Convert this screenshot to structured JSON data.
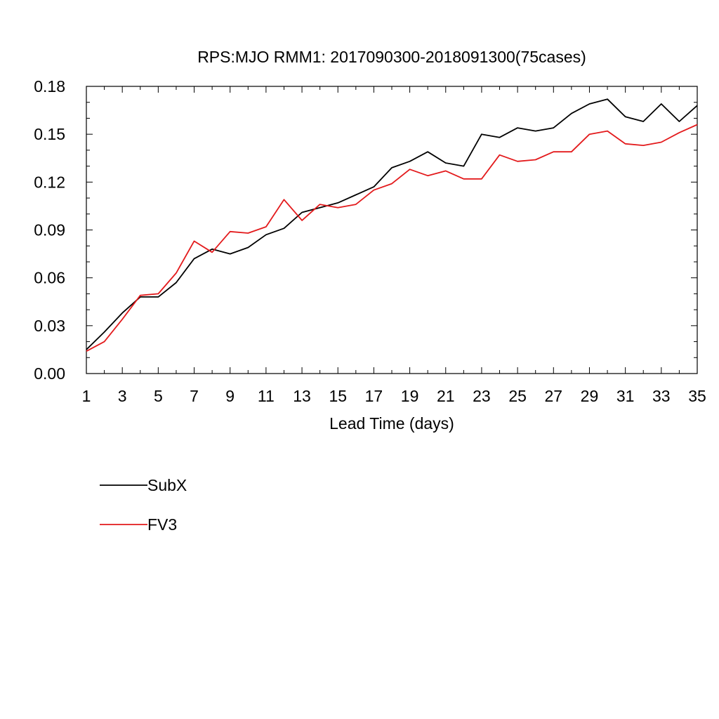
{
  "chart_data": {
    "type": "line",
    "title": "RPS:MJO RMM1: 2017090300-2018091300(75cases)",
    "xlabel": "Lead Time (days)",
    "ylabel": "",
    "xlim": [
      1,
      35
    ],
    "ylim": [
      0,
      0.18
    ],
    "x_ticks": [
      1,
      3,
      5,
      7,
      9,
      11,
      13,
      15,
      17,
      19,
      21,
      23,
      25,
      27,
      29,
      31,
      33,
      35
    ],
    "y_ticks": [
      "0.00",
      "0.03",
      "0.06",
      "0.09",
      "0.12",
      "0.15",
      "0.18"
    ],
    "grid": false,
    "legend_position": "bottom-left",
    "x": [
      1,
      2,
      3,
      4,
      5,
      6,
      7,
      8,
      9,
      10,
      11,
      12,
      13,
      14,
      15,
      16,
      17,
      18,
      19,
      20,
      21,
      22,
      23,
      24,
      25,
      26,
      27,
      28,
      29,
      30,
      31,
      32,
      33,
      34,
      35
    ],
    "series": [
      {
        "name": "SubX",
        "color": "#000000",
        "values": [
          0.015,
          0.026,
          0.038,
          0.048,
          0.048,
          0.057,
          0.072,
          0.078,
          0.075,
          0.079,
          0.087,
          0.091,
          0.101,
          0.104,
          0.107,
          0.112,
          0.117,
          0.129,
          0.133,
          0.139,
          0.132,
          0.13,
          0.15,
          0.148,
          0.154,
          0.152,
          0.154,
          0.163,
          0.169,
          0.172,
          0.161,
          0.158,
          0.169,
          0.158,
          0.168
        ]
      },
      {
        "name": "FV3",
        "color": "#e31a1c",
        "values": [
          0.014,
          0.02,
          0.034,
          0.049,
          0.05,
          0.063,
          0.083,
          0.076,
          0.089,
          0.088,
          0.092,
          0.109,
          0.096,
          0.106,
          0.104,
          0.106,
          0.115,
          0.119,
          0.128,
          0.124,
          0.127,
          0.122,
          0.122,
          0.137,
          0.133,
          0.134,
          0.139,
          0.139,
          0.15,
          0.152,
          0.144,
          0.143,
          0.145,
          0.151,
          0.156
        ]
      }
    ]
  }
}
